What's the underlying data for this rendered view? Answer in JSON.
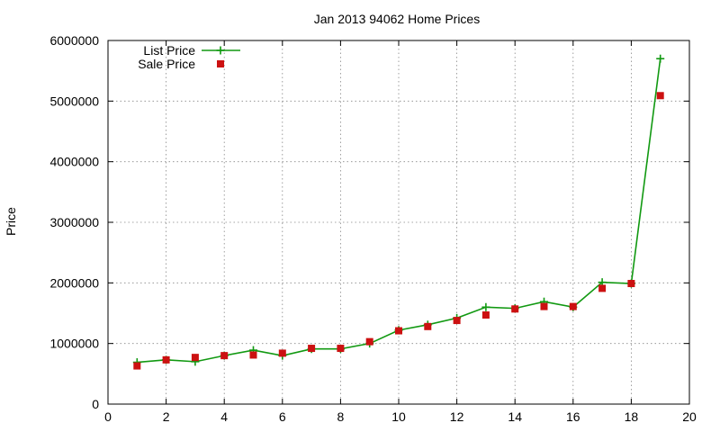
{
  "chart_data": {
    "type": "line",
    "title": "Jan 2013 94062 Home Prices",
    "xlabel": "",
    "ylabel": "Price",
    "xlim": [
      0,
      20
    ],
    "ylim": [
      0,
      6000000
    ],
    "x_ticks": [
      0,
      2,
      4,
      6,
      8,
      10,
      12,
      14,
      16,
      18,
      20
    ],
    "y_ticks": [
      0,
      1000000,
      2000000,
      3000000,
      4000000,
      5000000,
      6000000
    ],
    "grid": true,
    "legend_position": "top-left",
    "series": [
      {
        "name": "List Price",
        "style": "line-with-plus-markers",
        "color": "#119911",
        "x": [
          1,
          2,
          3,
          4,
          5,
          6,
          7,
          8,
          9,
          10,
          11,
          12,
          13,
          14,
          15,
          16,
          17,
          18,
          19
        ],
        "values": [
          690000,
          730000,
          700000,
          800000,
          890000,
          800000,
          910000,
          910000,
          1000000,
          1220000,
          1310000,
          1420000,
          1600000,
          1580000,
          1690000,
          1600000,
          2010000,
          1990000,
          5700000
        ]
      },
      {
        "name": "Sale Price",
        "style": "square-markers",
        "color": "#cc1111",
        "x": [
          1,
          2,
          3,
          4,
          5,
          6,
          7,
          8,
          9,
          10,
          11,
          12,
          13,
          14,
          15,
          16,
          17,
          18,
          19
        ],
        "values": [
          630000,
          730000,
          770000,
          800000,
          810000,
          840000,
          920000,
          920000,
          1030000,
          1210000,
          1280000,
          1380000,
          1470000,
          1570000,
          1610000,
          1610000,
          1910000,
          1990000,
          5090000
        ]
      }
    ]
  }
}
